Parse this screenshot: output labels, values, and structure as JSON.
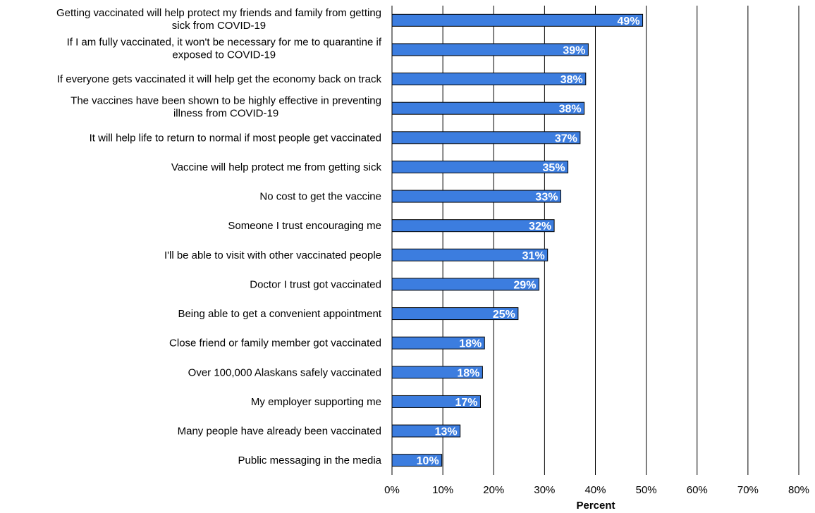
{
  "chart_data": {
    "type": "bar",
    "orientation": "horizontal",
    "categories": [
      "Getting vaccinated will help protect my friends and family from getting sick from COVID-19",
      "If I am fully vaccinated, it won't be necessary for me to quarantine if exposed to COVID-19",
      "If everyone gets vaccinated it will help get the economy back on track",
      "The vaccines have been shown to be highly effective in preventing illness from COVID-19",
      "It will help life to return to normal if most people get vaccinated",
      "Vaccine will help protect me from getting sick",
      "No cost to get the vaccine",
      "Someone I trust encouraging me",
      "I'll be able to visit with other vaccinated people",
      "Doctor I trust got vaccinated",
      "Being able to get a convenient appointment",
      "Close friend or family member got vaccinated",
      "Over 100,000 Alaskans safely vaccinated",
      "My employer supporting me",
      "Many people have already been vaccinated",
      "Public messaging in the media"
    ],
    "category_lines": [
      [
        "Getting vaccinated will help protect my friends and family from getting",
        "sick from COVID-19"
      ],
      [
        "If I am fully vaccinated, it won't be necessary for me to quarantine if",
        "exposed to COVID-19"
      ],
      [
        "If everyone gets vaccinated it will help get the economy back on track"
      ],
      [
        "The vaccines have been shown to be highly effective in preventing",
        "illness from COVID-19"
      ],
      [
        "It will help life to return to normal if most people get vaccinated"
      ],
      [
        "Vaccine will help protect me from getting sick"
      ],
      [
        "No cost to get the vaccine"
      ],
      [
        "Someone I trust encouraging me"
      ],
      [
        "I'll be able to visit with other vaccinated people"
      ],
      [
        "Doctor I trust got vaccinated"
      ],
      [
        "Being able to get a convenient appointment"
      ],
      [
        "Close friend or family member got vaccinated"
      ],
      [
        "Over 100,000 Alaskans safely vaccinated"
      ],
      [
        "My employer supporting me"
      ],
      [
        "Many people have already been vaccinated"
      ],
      [
        "Public messaging in the media"
      ]
    ],
    "values": [
      49.3,
      38.6,
      38.1,
      37.8,
      37.0,
      34.6,
      33.2,
      31.9,
      30.6,
      28.9,
      24.8,
      18.2,
      17.8,
      17.4,
      13.4,
      9.8
    ],
    "data_labels": [
      "49%",
      "39%",
      "38%",
      "38%",
      "37%",
      "35%",
      "33%",
      "32%",
      "31%",
      "29%",
      "25%",
      "18%",
      "18%",
      "17%",
      "13%",
      "10%"
    ],
    "xlabel": "Percent",
    "ylabel": "",
    "title": "",
    "xlim": [
      0,
      80
    ],
    "ticks": [
      0,
      10,
      20,
      30,
      40,
      50,
      60,
      70,
      80
    ],
    "tick_labels": [
      "0%",
      "10%",
      "20%",
      "30%",
      "40%",
      "50%",
      "60%",
      "70%",
      "80%"
    ],
    "grid": "vertical",
    "legend": "none",
    "bar_color": "#3c7ddf",
    "bar_edge_color": "#000000",
    "grid_color": "#000000"
  }
}
